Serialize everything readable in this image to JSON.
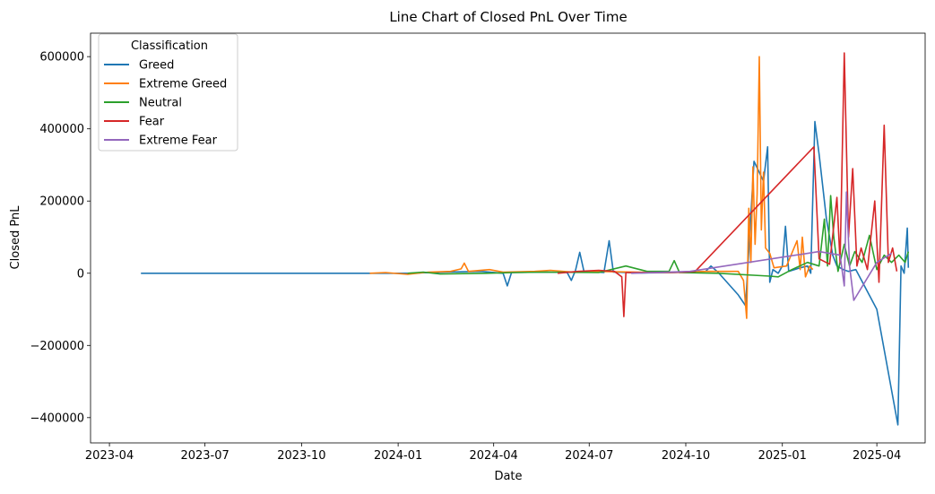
{
  "chart_data": {
    "type": "line",
    "title": "Line Chart of Closed PnL Over Time",
    "xlabel": "Date",
    "ylabel": "Closed PnL",
    "x_ticks": [
      "2023-04",
      "2023-07",
      "2023-10",
      "2024-01",
      "2024-04",
      "2024-07",
      "2024-10",
      "2025-01",
      "2025-04"
    ],
    "y_ticks": [
      600000,
      400000,
      200000,
      0,
      -200000,
      -400000
    ],
    "y_tick_labels": [
      "600000",
      "400000",
      "200000",
      "0",
      "−200000",
      "−400000"
    ],
    "xlim": [
      "2023-03-14",
      "2025-05-17"
    ],
    "ylim": [
      -470000,
      665000
    ],
    "grid": false,
    "legend": {
      "title": "Classification",
      "position": "upper-left"
    },
    "series": [
      {
        "name": "Greed",
        "color": "#1f77b4",
        "points": [
          [
            "2023-05-01",
            0
          ],
          [
            "2023-12-05",
            0
          ],
          [
            "2024-01-10",
            0
          ],
          [
            "2024-02-15",
            3000
          ],
          [
            "2024-03-20",
            5000
          ],
          [
            "2024-04-10",
            0
          ],
          [
            "2024-04-14",
            -35000
          ],
          [
            "2024-04-18",
            2000
          ],
          [
            "2024-05-20",
            3000
          ],
          [
            "2024-06-10",
            2000
          ],
          [
            "2024-06-14",
            -20000
          ],
          [
            "2024-06-18",
            8000
          ],
          [
            "2024-06-22",
            58000
          ],
          [
            "2024-06-26",
            5000
          ],
          [
            "2024-07-15",
            2000
          ],
          [
            "2024-07-20",
            90000
          ],
          [
            "2024-07-24",
            3000
          ],
          [
            "2024-08-20",
            1000
          ],
          [
            "2024-09-20",
            2000
          ],
          [
            "2024-10-20",
            5000
          ],
          [
            "2024-10-25",
            20000
          ],
          [
            "2024-11-01",
            2000
          ],
          [
            "2024-11-20",
            -60000
          ],
          [
            "2024-11-27",
            -90000
          ],
          [
            "2024-12-05",
            310000
          ],
          [
            "2024-12-14",
            255000
          ],
          [
            "2024-12-18",
            350000
          ],
          [
            "2024-12-20",
            -25000
          ],
          [
            "2024-12-23",
            10000
          ],
          [
            "2024-12-28",
            0
          ],
          [
            "2025-01-01",
            20000
          ],
          [
            "2025-01-04",
            130000
          ],
          [
            "2025-01-07",
            5000
          ],
          [
            "2025-01-18",
            15000
          ],
          [
            "2025-01-25",
            20000
          ],
          [
            "2025-01-28",
            0
          ],
          [
            "2025-02-01",
            420000
          ],
          [
            "2025-02-05",
            330000
          ],
          [
            "2025-02-12",
            150000
          ],
          [
            "2025-02-18",
            50000
          ],
          [
            "2025-02-22",
            20000
          ],
          [
            "2025-02-28",
            10000
          ],
          [
            "2025-03-05",
            5000
          ],
          [
            "2025-03-12",
            10000
          ],
          [
            "2025-04-01",
            -100000
          ],
          [
            "2025-04-21",
            -420000
          ],
          [
            "2025-04-24",
            20000
          ],
          [
            "2025-04-27",
            0
          ],
          [
            "2025-04-30",
            125000
          ],
          [
            "2025-05-01",
            15000
          ]
        ]
      },
      {
        "name": "Extreme Greed",
        "color": "#ff7f0e",
        "points": [
          [
            "2023-12-05",
            0
          ],
          [
            "2023-12-20",
            2000
          ],
          [
            "2024-01-10",
            -3000
          ],
          [
            "2024-01-30",
            3000
          ],
          [
            "2024-02-20",
            5000
          ],
          [
            "2024-03-01",
            12000
          ],
          [
            "2024-03-04",
            28000
          ],
          [
            "2024-03-08",
            5000
          ],
          [
            "2024-03-28",
            10000
          ],
          [
            "2024-04-10",
            3000
          ],
          [
            "2024-05-10",
            5000
          ],
          [
            "2024-05-25",
            8000
          ],
          [
            "2024-06-15",
            3000
          ],
          [
            "2024-07-05",
            5000
          ],
          [
            "2024-08-15",
            3000
          ],
          [
            "2024-09-15",
            2000
          ],
          [
            "2024-10-20",
            5000
          ],
          [
            "2024-11-20",
            5000
          ],
          [
            "2024-11-25",
            -20000
          ],
          [
            "2024-11-28",
            -125000
          ],
          [
            "2024-11-30",
            180000
          ],
          [
            "2024-12-02",
            30000
          ],
          [
            "2024-12-04",
            295000
          ],
          [
            "2024-12-06",
            80000
          ],
          [
            "2024-12-08",
            220000
          ],
          [
            "2024-12-10",
            600000
          ],
          [
            "2024-12-12",
            120000
          ],
          [
            "2024-12-14",
            280000
          ],
          [
            "2024-12-16",
            70000
          ],
          [
            "2024-12-20",
            55000
          ],
          [
            "2024-12-24",
            15000
          ],
          [
            "2025-01-05",
            20000
          ],
          [
            "2025-01-15",
            90000
          ],
          [
            "2025-01-18",
            10000
          ],
          [
            "2025-01-20",
            100000
          ],
          [
            "2025-01-23",
            -10000
          ],
          [
            "2025-01-27",
            20000
          ],
          [
            "2025-01-30",
            10000
          ]
        ]
      },
      {
        "name": "Neutral",
        "color": "#2ca02c",
        "points": [
          [
            "2024-01-10",
            0
          ],
          [
            "2024-01-25",
            3000
          ],
          [
            "2024-02-10",
            -2000
          ],
          [
            "2024-03-25",
            0
          ],
          [
            "2024-04-20",
            2000
          ],
          [
            "2024-05-20",
            3000
          ],
          [
            "2024-07-10",
            2000
          ],
          [
            "2024-08-05",
            20000
          ],
          [
            "2024-08-25",
            5000
          ],
          [
            "2024-09-15",
            5000
          ],
          [
            "2024-09-20",
            35000
          ],
          [
            "2024-09-25",
            2000
          ],
          [
            "2024-11-01",
            0
          ],
          [
            "2024-12-20",
            -8000
          ],
          [
            "2024-12-28",
            -10000
          ],
          [
            "2025-01-10",
            10000
          ],
          [
            "2025-01-25",
            30000
          ],
          [
            "2025-02-05",
            20000
          ],
          [
            "2025-02-10",
            150000
          ],
          [
            "2025-02-13",
            20000
          ],
          [
            "2025-02-16",
            215000
          ],
          [
            "2025-02-19",
            100000
          ],
          [
            "2025-02-23",
            5000
          ],
          [
            "2025-03-01",
            80000
          ],
          [
            "2025-03-06",
            20000
          ],
          [
            "2025-03-11",
            60000
          ],
          [
            "2025-03-18",
            30000
          ],
          [
            "2025-03-25",
            105000
          ],
          [
            "2025-04-01",
            10000
          ],
          [
            "2025-04-08",
            50000
          ],
          [
            "2025-04-15",
            30000
          ],
          [
            "2025-04-22",
            50000
          ],
          [
            "2025-04-28",
            30000
          ],
          [
            "2025-05-01",
            60000
          ]
        ]
      },
      {
        "name": "Fear",
        "color": "#d62728",
        "points": [
          [
            "2024-06-01",
            0
          ],
          [
            "2024-06-20",
            5000
          ],
          [
            "2024-07-10",
            8000
          ],
          [
            "2024-07-25",
            5000
          ],
          [
            "2024-08-01",
            -10000
          ],
          [
            "2024-08-03",
            -120000
          ],
          [
            "2024-08-05",
            2000
          ],
          [
            "2024-09-01",
            2000
          ],
          [
            "2024-10-01",
            3000
          ],
          [
            "2024-10-10",
            5000
          ],
          [
            "2025-01-31",
            350000
          ],
          [
            "2025-02-05",
            40000
          ],
          [
            "2025-02-15",
            25000
          ],
          [
            "2025-02-22",
            210000
          ],
          [
            "2025-02-25",
            30000
          ],
          [
            "2025-03-01",
            610000
          ],
          [
            "2025-03-05",
            100000
          ],
          [
            "2025-03-09",
            290000
          ],
          [
            "2025-03-13",
            20000
          ],
          [
            "2025-03-17",
            70000
          ],
          [
            "2025-03-23",
            10000
          ],
          [
            "2025-03-30",
            200000
          ],
          [
            "2025-04-03",
            -25000
          ],
          [
            "2025-04-08",
            410000
          ],
          [
            "2025-04-12",
            30000
          ],
          [
            "2025-04-16",
            70000
          ],
          [
            "2025-04-20",
            5000
          ]
        ]
      },
      {
        "name": "Extreme Fear",
        "color": "#9467bd",
        "points": [
          [
            "2024-08-10",
            0
          ],
          [
            "2024-10-05",
            5000
          ],
          [
            "2025-02-05",
            60000
          ],
          [
            "2025-02-25",
            50000
          ],
          [
            "2025-03-01",
            -35000
          ],
          [
            "2025-03-03",
            225000
          ],
          [
            "2025-03-06",
            20000
          ],
          [
            "2025-03-10",
            -75000
          ],
          [
            "2025-04-01",
            30000
          ],
          [
            "2025-04-15",
            55000
          ]
        ]
      }
    ]
  }
}
